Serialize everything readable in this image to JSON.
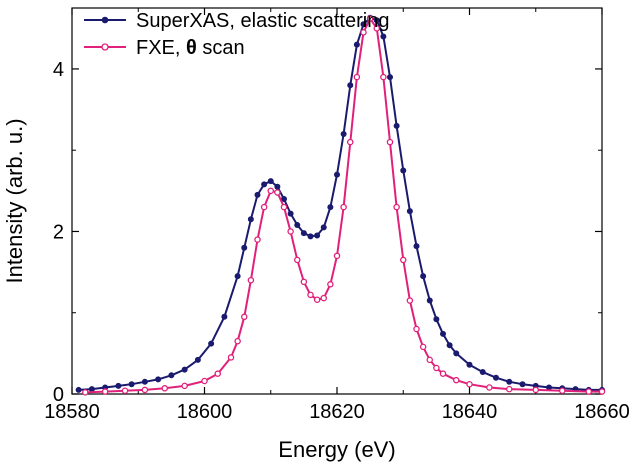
{
  "chart_data": {
    "type": "line",
    "title": "",
    "xlabel": "Energy (eV)",
    "ylabel": "Intensity (arb. u.)",
    "xlim": [
      18580,
      18660
    ],
    "ylim": [
      0,
      4.75
    ],
    "x_ticks": [
      {
        "value": 18580,
        "label": "18580"
      },
      {
        "value": 18600,
        "label": "18600"
      },
      {
        "value": 18620,
        "label": "18620"
      },
      {
        "value": 18640,
        "label": "18640"
      },
      {
        "value": 18660,
        "label": "18660"
      }
    ],
    "y_ticks": [
      {
        "value": 0,
        "label": "0"
      },
      {
        "value": 2,
        "label": "2"
      },
      {
        "value": 4,
        "label": "4"
      }
    ],
    "legend_position": "top-left",
    "series": [
      {
        "name": "SuperXAS, elastic scattering",
        "name_parts": [
          "SuperXAS, elastic scattering"
        ],
        "color": "#1a1a6e",
        "marker": "filled-circle",
        "x": [
          18581,
          18583,
          18585,
          18587,
          18589,
          18591,
          18593,
          18595,
          18597,
          18599,
          18601,
          18603,
          18605,
          18606,
          18607,
          18608,
          18609,
          18610,
          18611,
          18612,
          18613,
          18614,
          18615,
          18616,
          18617,
          18618,
          18619,
          18620,
          18621,
          18622,
          18623,
          18624,
          18625,
          18626,
          18627,
          18628,
          18629,
          18630,
          18631,
          18632,
          18633,
          18634,
          18635,
          18636,
          18637,
          18638,
          18640,
          18642,
          18644,
          18646,
          18648,
          18650,
          18652,
          18654,
          18656,
          18658,
          18660
        ],
        "values": [
          0.05,
          0.06,
          0.08,
          0.1,
          0.12,
          0.15,
          0.18,
          0.23,
          0.3,
          0.42,
          0.62,
          0.95,
          1.45,
          1.8,
          2.15,
          2.45,
          2.58,
          2.62,
          2.55,
          2.4,
          2.22,
          2.08,
          1.98,
          1.94,
          1.95,
          2.05,
          2.3,
          2.7,
          3.2,
          3.8,
          4.3,
          4.55,
          4.63,
          4.6,
          4.4,
          3.9,
          3.3,
          2.75,
          2.25,
          1.82,
          1.45,
          1.15,
          0.92,
          0.74,
          0.6,
          0.5,
          0.36,
          0.27,
          0.2,
          0.15,
          0.12,
          0.1,
          0.08,
          0.07,
          0.06,
          0.05,
          0.05
        ]
      },
      {
        "name": "FXE, θ scan",
        "name_parts": [
          "FXE, ",
          "θ",
          " scan"
        ],
        "color": "#e0207a",
        "marker": "open-circle",
        "x": [
          18582,
          18585,
          18588,
          18591,
          18594,
          18597,
          18600,
          18602,
          18604,
          18605,
          18606,
          18607,
          18608,
          18609,
          18610,
          18611,
          18612,
          18613,
          18614,
          18615,
          18616,
          18617,
          18618,
          18619,
          18620,
          18621,
          18622,
          18623,
          18624,
          18625,
          18626,
          18627,
          18628,
          18629,
          18630,
          18631,
          18632,
          18633,
          18634,
          18635,
          18636,
          18638,
          18640,
          18643,
          18646,
          18650,
          18654,
          18658,
          18660
        ],
        "values": [
          0.02,
          0.03,
          0.04,
          0.05,
          0.07,
          0.1,
          0.16,
          0.25,
          0.45,
          0.65,
          0.95,
          1.4,
          1.9,
          2.3,
          2.5,
          2.48,
          2.3,
          2.0,
          1.65,
          1.38,
          1.22,
          1.16,
          1.18,
          1.35,
          1.7,
          2.3,
          3.1,
          3.9,
          4.45,
          4.62,
          4.5,
          3.9,
          3.1,
          2.3,
          1.65,
          1.15,
          0.8,
          0.58,
          0.42,
          0.32,
          0.25,
          0.17,
          0.12,
          0.08,
          0.06,
          0.05,
          0.04,
          0.03,
          0.03
        ]
      }
    ]
  }
}
